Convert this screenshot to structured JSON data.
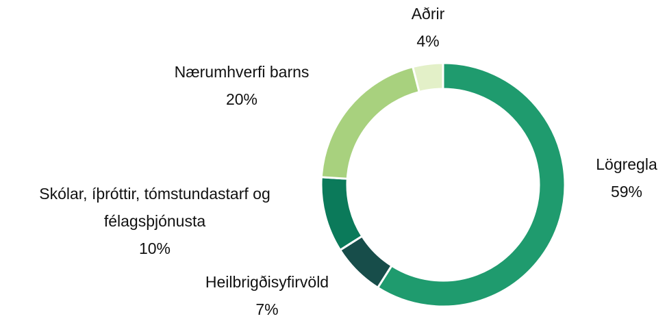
{
  "chart_data": {
    "type": "donut",
    "categories": [
      "Lögregla",
      "Heilbrigðisyfirvöld",
      "Skólar, íþróttir, tómstundastarf og félagsþjónusta",
      "Nærumhverfi barns",
      "Aðrir"
    ],
    "values": [
      59,
      7,
      10,
      20,
      4
    ],
    "value_labels": [
      "59%",
      "7%",
      "10%",
      "20%",
      "4%"
    ],
    "colors": [
      "#1f9b6e",
      "#174d4a",
      "#0b7a5a",
      "#a8d17e",
      "#e3f0c8"
    ]
  }
}
